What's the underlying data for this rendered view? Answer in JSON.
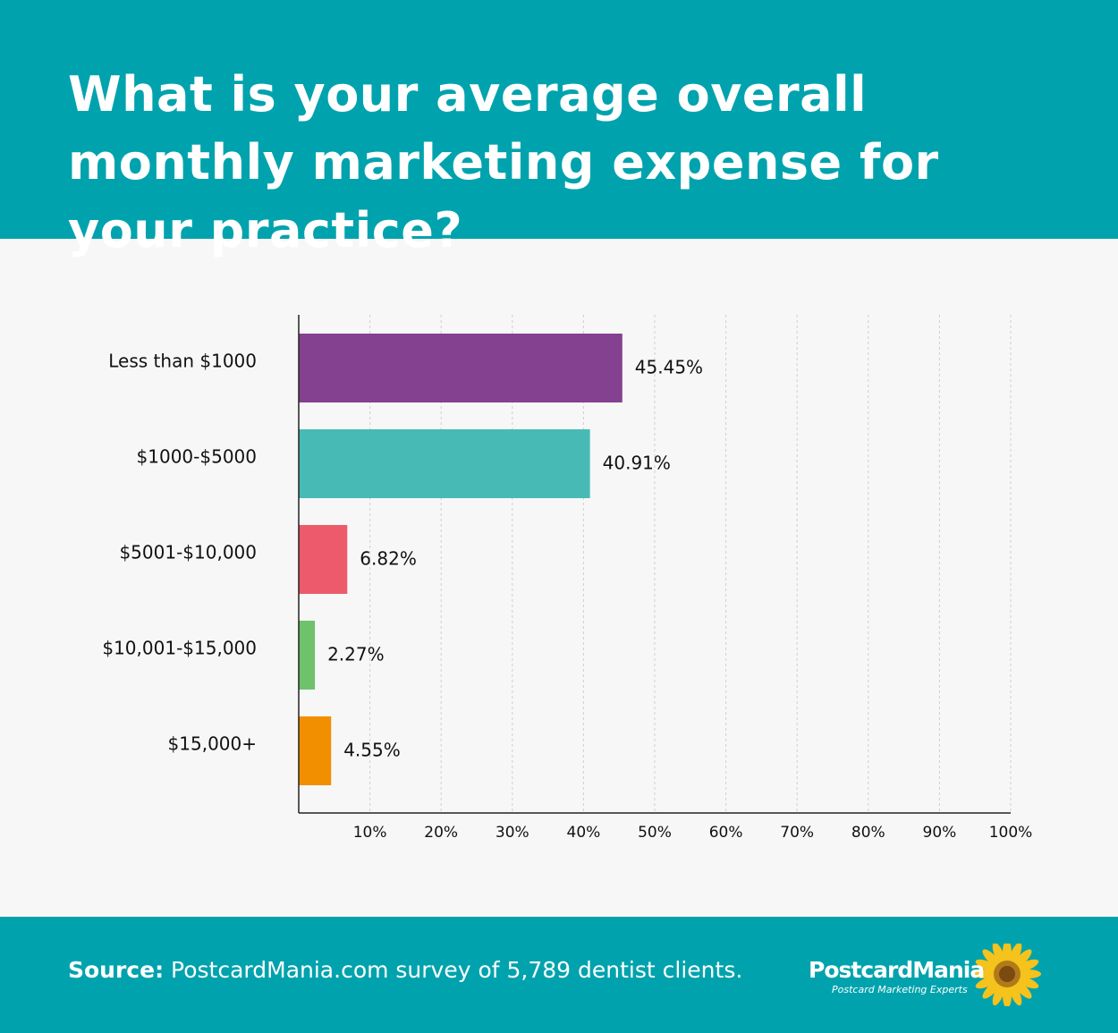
{
  "header": {
    "title": "What is your average overall monthly marketing expense for your practice?"
  },
  "footer": {
    "source_label": "Source:",
    "source_text": " PostcardMania.com survey of 5,789 dentist clients.",
    "logo_name": "PostcardMania",
    "logo_tagline": "Postcard Marketing Experts"
  },
  "chart_data": {
    "type": "bar",
    "orientation": "horizontal",
    "categories": [
      "Less than $1000",
      "$1000-$5000",
      "$5001-$10,000",
      "$10,001-$15,000",
      "$15,000+"
    ],
    "values": [
      45.45,
      40.91,
      6.82,
      2.27,
      4.55
    ],
    "data_labels": [
      "45.45%",
      "40.91%",
      "6.82%",
      "2.27%",
      "4.55%"
    ],
    "colors": [
      "#84418f",
      "#48bab5",
      "#ec5a6c",
      "#6ec26a",
      "#f18f01"
    ],
    "xlim": [
      0,
      100
    ],
    "xticks": [
      10,
      20,
      30,
      40,
      50,
      60,
      70,
      80,
      90,
      100
    ],
    "xtick_labels": [
      "10%",
      "20%",
      "30%",
      "40%",
      "50%",
      "60%",
      "70%",
      "80%",
      "90%",
      "100%"
    ],
    "grid": "vertical dashed",
    "title": "What is your average overall monthly marketing expense for your practice?"
  }
}
